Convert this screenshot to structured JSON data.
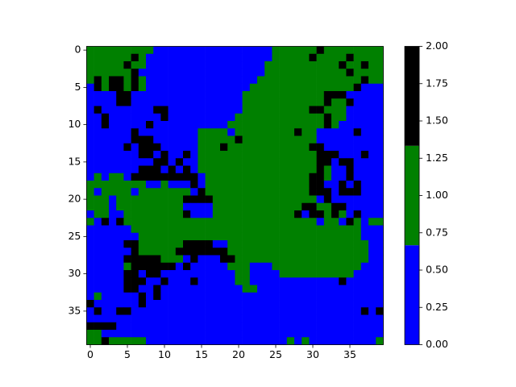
{
  "chart_data": {
    "type": "heatmap",
    "xlim": [
      -0.5,
      39.5
    ],
    "ylim": [
      39.5,
      -0.5
    ],
    "xticks": [
      0,
      5,
      10,
      15,
      20,
      25,
      30,
      35
    ],
    "yticks": [
      0,
      5,
      10,
      15,
      20,
      25,
      30,
      35
    ],
    "colorbar": {
      "lim": [
        0,
        2
      ],
      "colors": [
        "#0000ff",
        "#008000",
        "#000000"
      ],
      "ticks": [
        {
          "value": 0,
          "label": "0.00"
        },
        {
          "value": 0.25,
          "label": "0.25"
        },
        {
          "value": 0.5,
          "label": "0.50"
        },
        {
          "value": 0.75,
          "label": "0.75"
        },
        {
          "value": 1,
          "label": "1.00"
        },
        {
          "value": 1.25,
          "label": "1.25"
        },
        {
          "value": 1.5,
          "label": "1.50"
        },
        {
          "value": 1.75,
          "label": "1.75"
        },
        {
          "value": 2,
          "label": "2.00"
        }
      ]
    },
    "values": [
      [
        1,
        1,
        1,
        1,
        1,
        1,
        1,
        1,
        1,
        0,
        0,
        0,
        0,
        0,
        0,
        0,
        0,
        0,
        0,
        0,
        0,
        0,
        0,
        0,
        0,
        1,
        1,
        1,
        1,
        1,
        1,
        2,
        1,
        1,
        1,
        1,
        1,
        1,
        1,
        1
      ],
      [
        1,
        1,
        1,
        1,
        1,
        1,
        2,
        1,
        0,
        0,
        0,
        0,
        0,
        0,
        0,
        0,
        0,
        0,
        0,
        0,
        0,
        0,
        0,
        0,
        0,
        1,
        1,
        1,
        1,
        1,
        2,
        1,
        1,
        1,
        1,
        2,
        1,
        1,
        1,
        1
      ],
      [
        1,
        1,
        1,
        1,
        1,
        2,
        1,
        1,
        0,
        0,
        0,
        0,
        0,
        0,
        0,
        0,
        0,
        0,
        0,
        0,
        0,
        0,
        0,
        0,
        1,
        1,
        1,
        1,
        1,
        1,
        1,
        1,
        1,
        1,
        2,
        1,
        1,
        2,
        1,
        1
      ],
      [
        1,
        1,
        1,
        1,
        1,
        1,
        2,
        0,
        0,
        0,
        0,
        0,
        0,
        0,
        0,
        0,
        0,
        0,
        0,
        0,
        0,
        0,
        0,
        0,
        1,
        1,
        1,
        1,
        1,
        1,
        1,
        1,
        1,
        1,
        1,
        2,
        1,
        1,
        1,
        1
      ],
      [
        1,
        2,
        1,
        2,
        2,
        1,
        2,
        1,
        0,
        0,
        0,
        0,
        0,
        0,
        0,
        0,
        0,
        0,
        0,
        0,
        0,
        0,
        0,
        1,
        1,
        1,
        1,
        1,
        1,
        1,
        1,
        1,
        1,
        1,
        1,
        1,
        1,
        2,
        1,
        1
      ],
      [
        0,
        2,
        1,
        2,
        2,
        1,
        2,
        1,
        0,
        0,
        0,
        0,
        0,
        0,
        0,
        0,
        0,
        0,
        0,
        0,
        0,
        0,
        1,
        1,
        1,
        1,
        1,
        1,
        1,
        1,
        1,
        1,
        1,
        1,
        1,
        1,
        2,
        0,
        0,
        0
      ],
      [
        0,
        0,
        0,
        0,
        2,
        2,
        0,
        0,
        0,
        0,
        0,
        0,
        0,
        0,
        0,
        0,
        0,
        0,
        0,
        0,
        0,
        1,
        1,
        1,
        1,
        1,
        1,
        1,
        1,
        1,
        1,
        1,
        2,
        2,
        2,
        0,
        0,
        0,
        0,
        0
      ],
      [
        0,
        0,
        0,
        0,
        2,
        2,
        0,
        0,
        0,
        0,
        0,
        0,
        0,
        0,
        0,
        0,
        0,
        0,
        0,
        0,
        0,
        1,
        1,
        1,
        1,
        1,
        1,
        1,
        1,
        1,
        1,
        1,
        2,
        1,
        1,
        2,
        0,
        0,
        0,
        0
      ],
      [
        0,
        2,
        0,
        0,
        0,
        0,
        0,
        0,
        0,
        2,
        2,
        0,
        0,
        0,
        0,
        0,
        0,
        0,
        0,
        0,
        0,
        1,
        1,
        1,
        1,
        1,
        1,
        1,
        1,
        1,
        2,
        2,
        1,
        1,
        1,
        0,
        0,
        0,
        0,
        0
      ],
      [
        0,
        0,
        2,
        0,
        0,
        0,
        0,
        0,
        0,
        0,
        2,
        0,
        0,
        0,
        0,
        0,
        0,
        0,
        0,
        0,
        1,
        1,
        1,
        1,
        1,
        1,
        1,
        1,
        1,
        1,
        1,
        1,
        2,
        1,
        1,
        0,
        0,
        0,
        0,
        0
      ],
      [
        0,
        0,
        2,
        0,
        0,
        0,
        0,
        0,
        2,
        0,
        0,
        0,
        0,
        0,
        0,
        0,
        0,
        0,
        0,
        1,
        1,
        1,
        1,
        1,
        1,
        1,
        1,
        1,
        1,
        1,
        1,
        1,
        2,
        1,
        0,
        0,
        0,
        0,
        0,
        0
      ],
      [
        0,
        0,
        0,
        0,
        0,
        0,
        2,
        0,
        0,
        0,
        0,
        0,
        0,
        0,
        0,
        1,
        1,
        1,
        1,
        0,
        1,
        1,
        1,
        1,
        1,
        1,
        1,
        1,
        2,
        1,
        1,
        0,
        0,
        0,
        0,
        0,
        2,
        0,
        0,
        0
      ],
      [
        0,
        0,
        0,
        0,
        0,
        0,
        2,
        2,
        2,
        0,
        0,
        0,
        0,
        0,
        0,
        1,
        1,
        1,
        1,
        1,
        2,
        1,
        1,
        1,
        1,
        1,
        1,
        1,
        1,
        1,
        1,
        0,
        0,
        0,
        0,
        0,
        0,
        0,
        0,
        0
      ],
      [
        0,
        0,
        0,
        0,
        0,
        2,
        0,
        2,
        2,
        2,
        0,
        0,
        0,
        0,
        0,
        1,
        1,
        1,
        2,
        1,
        1,
        1,
        1,
        1,
        1,
        1,
        1,
        1,
        1,
        1,
        2,
        2,
        0,
        0,
        0,
        0,
        0,
        0,
        0,
        0
      ],
      [
        0,
        0,
        0,
        0,
        0,
        0,
        0,
        2,
        2,
        0,
        2,
        0,
        0,
        2,
        0,
        1,
        1,
        1,
        1,
        1,
        1,
        1,
        1,
        1,
        1,
        1,
        1,
        1,
        1,
        1,
        1,
        2,
        2,
        2,
        0,
        0,
        0,
        2,
        0,
        0
      ],
      [
        0,
        0,
        0,
        0,
        0,
        0,
        0,
        0,
        0,
        2,
        2,
        0,
        2,
        0,
        0,
        1,
        1,
        1,
        1,
        1,
        1,
        1,
        1,
        1,
        1,
        1,
        1,
        1,
        1,
        1,
        1,
        2,
        2,
        0,
        2,
        2,
        0,
        0,
        0,
        0
      ],
      [
        0,
        0,
        0,
        0,
        0,
        0,
        0,
        2,
        2,
        2,
        0,
        2,
        0,
        2,
        0,
        1,
        1,
        1,
        1,
        1,
        1,
        1,
        1,
        1,
        1,
        1,
        1,
        1,
        1,
        1,
        1,
        2,
        1,
        0,
        0,
        2,
        0,
        0,
        0,
        0
      ],
      [
        0,
        1,
        0,
        1,
        1,
        0,
        2,
        2,
        2,
        2,
        2,
        2,
        2,
        2,
        2,
        0,
        1,
        1,
        1,
        1,
        1,
        1,
        1,
        1,
        1,
        1,
        1,
        1,
        1,
        1,
        2,
        2,
        1,
        0,
        0,
        2,
        0,
        0,
        0,
        0
      ],
      [
        1,
        1,
        1,
        1,
        1,
        1,
        1,
        1,
        0,
        0,
        1,
        0,
        0,
        0,
        2,
        0,
        1,
        1,
        1,
        1,
        1,
        1,
        1,
        1,
        1,
        1,
        1,
        1,
        1,
        1,
        2,
        2,
        0,
        0,
        2,
        0,
        2,
        0,
        0,
        0
      ],
      [
        1,
        0,
        1,
        1,
        1,
        1,
        0,
        1,
        1,
        1,
        1,
        1,
        1,
        1,
        0,
        2,
        1,
        1,
        1,
        1,
        1,
        1,
        1,
        1,
        1,
        1,
        1,
        1,
        1,
        1,
        2,
        2,
        2,
        0,
        2,
        2,
        2,
        0,
        0,
        0
      ],
      [
        1,
        1,
        1,
        0,
        1,
        1,
        1,
        1,
        1,
        1,
        1,
        1,
        1,
        2,
        2,
        2,
        2,
        1,
        1,
        1,
        1,
        1,
        1,
        1,
        1,
        1,
        1,
        1,
        1,
        1,
        1,
        0,
        2,
        0,
        0,
        0,
        0,
        0,
        0,
        0
      ],
      [
        1,
        1,
        1,
        0,
        1,
        1,
        1,
        1,
        1,
        1,
        1,
        1,
        1,
        0,
        0,
        0,
        0,
        1,
        1,
        1,
        1,
        1,
        1,
        1,
        1,
        1,
        1,
        1,
        1,
        2,
        2,
        1,
        1,
        2,
        2,
        0,
        0,
        0,
        0,
        0
      ],
      [
        0,
        1,
        1,
        0,
        0,
        1,
        1,
        1,
        1,
        1,
        1,
        1,
        1,
        2,
        0,
        0,
        0,
        1,
        1,
        1,
        1,
        1,
        1,
        1,
        1,
        1,
        1,
        1,
        2,
        0,
        2,
        2,
        1,
        2,
        1,
        0,
        2,
        0,
        0,
        0
      ],
      [
        1,
        0,
        2,
        0,
        2,
        1,
        1,
        1,
        1,
        1,
        1,
        1,
        1,
        1,
        1,
        1,
        1,
        1,
        1,
        1,
        1,
        1,
        1,
        1,
        1,
        1,
        1,
        1,
        1,
        1,
        1,
        0,
        1,
        1,
        0,
        2,
        1,
        0,
        1,
        1
      ],
      [
        0,
        0,
        0,
        0,
        0,
        0,
        1,
        1,
        1,
        1,
        1,
        1,
        1,
        1,
        1,
        1,
        1,
        1,
        1,
        1,
        1,
        1,
        1,
        1,
        1,
        1,
        1,
        1,
        1,
        1,
        1,
        1,
        1,
        1,
        1,
        1,
        1,
        0,
        0,
        0
      ],
      [
        0,
        0,
        0,
        0,
        0,
        0,
        0,
        1,
        1,
        1,
        1,
        1,
        1,
        1,
        1,
        1,
        1,
        1,
        1,
        1,
        1,
        1,
        1,
        1,
        1,
        1,
        1,
        1,
        1,
        1,
        1,
        1,
        1,
        1,
        1,
        1,
        1,
        0,
        0,
        0
      ],
      [
        0,
        0,
        0,
        0,
        0,
        2,
        2,
        1,
        1,
        1,
        1,
        1,
        1,
        2,
        2,
        2,
        2,
        0,
        0,
        1,
        1,
        1,
        1,
        1,
        1,
        1,
        1,
        1,
        1,
        1,
        1,
        1,
        1,
        1,
        1,
        1,
        1,
        1,
        0,
        0
      ],
      [
        0,
        0,
        0,
        0,
        0,
        0,
        2,
        1,
        1,
        1,
        1,
        1,
        2,
        2,
        2,
        2,
        2,
        2,
        2,
        1,
        1,
        1,
        1,
        1,
        1,
        1,
        1,
        1,
        1,
        1,
        1,
        1,
        1,
        1,
        1,
        1,
        1,
        1,
        0,
        0
      ],
      [
        0,
        0,
        0,
        0,
        0,
        2,
        2,
        2,
        2,
        2,
        1,
        1,
        1,
        0,
        2,
        0,
        0,
        0,
        2,
        2,
        1,
        1,
        1,
        1,
        1,
        1,
        1,
        1,
        1,
        1,
        1,
        1,
        1,
        1,
        1,
        1,
        1,
        1,
        0,
        0
      ],
      [
        0,
        0,
        0,
        0,
        0,
        1,
        2,
        2,
        2,
        2,
        2,
        2,
        0,
        2,
        0,
        0,
        0,
        0,
        0,
        1,
        1,
        1,
        0,
        0,
        0,
        1,
        1,
        1,
        1,
        1,
        1,
        1,
        1,
        1,
        1,
        1,
        1,
        0,
        0,
        0
      ],
      [
        0,
        0,
        0,
        0,
        0,
        2,
        2,
        0,
        2,
        2,
        0,
        0,
        0,
        0,
        0,
        0,
        0,
        0,
        0,
        0,
        1,
        1,
        0,
        0,
        0,
        0,
        1,
        1,
        1,
        1,
        1,
        1,
        1,
        1,
        1,
        1,
        0,
        0,
        0,
        0
      ],
      [
        0,
        0,
        0,
        0,
        0,
        2,
        2,
        2,
        0,
        0,
        2,
        0,
        0,
        0,
        2,
        0,
        0,
        0,
        0,
        0,
        1,
        1,
        0,
        0,
        0,
        0,
        0,
        0,
        0,
        0,
        0,
        0,
        0,
        0,
        2,
        0,
        0,
        0,
        0,
        0
      ],
      [
        0,
        0,
        0,
        0,
        0,
        2,
        2,
        0,
        0,
        2,
        0,
        0,
        0,
        0,
        0,
        0,
        0,
        0,
        0,
        0,
        0,
        1,
        1,
        0,
        0,
        0,
        0,
        0,
        0,
        0,
        0,
        0,
        0,
        0,
        0,
        0,
        0,
        0,
        0,
        0
      ],
      [
        0,
        1,
        0,
        0,
        0,
        0,
        0,
        2,
        0,
        2,
        0,
        0,
        0,
        0,
        0,
        0,
        0,
        0,
        0,
        0,
        0,
        0,
        0,
        0,
        0,
        0,
        0,
        0,
        0,
        0,
        0,
        0,
        0,
        0,
        0,
        0,
        0,
        0,
        0,
        0
      ],
      [
        2,
        0,
        0,
        0,
        0,
        0,
        0,
        2,
        0,
        0,
        0,
        0,
        0,
        0,
        0,
        0,
        0,
        0,
        0,
        0,
        0,
        0,
        0,
        0,
        0,
        0,
        0,
        0,
        0,
        0,
        0,
        0,
        0,
        0,
        0,
        0,
        0,
        0,
        0,
        0
      ],
      [
        0,
        2,
        0,
        0,
        2,
        2,
        0,
        0,
        0,
        0,
        0,
        0,
        0,
        0,
        0,
        0,
        0,
        0,
        0,
        0,
        0,
        0,
        0,
        0,
        0,
        0,
        0,
        0,
        0,
        0,
        0,
        0,
        0,
        0,
        0,
        0,
        0,
        2,
        0,
        2
      ],
      [
        0,
        0,
        0,
        0,
        0,
        0,
        0,
        0,
        0,
        0,
        0,
        0,
        0,
        0,
        0,
        0,
        0,
        0,
        0,
        0,
        0,
        0,
        0,
        0,
        0,
        0,
        0,
        0,
        0,
        0,
        0,
        0,
        0,
        0,
        0,
        0,
        0,
        0,
        0,
        0
      ],
      [
        2,
        2,
        2,
        2,
        0,
        0,
        0,
        0,
        0,
        0,
        0,
        0,
        0,
        0,
        0,
        0,
        0,
        0,
        0,
        0,
        0,
        0,
        0,
        0,
        0,
        0,
        0,
        0,
        0,
        0,
        0,
        0,
        0,
        0,
        0,
        0,
        0,
        0,
        0,
        0
      ],
      [
        1,
        1,
        0,
        0,
        0,
        0,
        0,
        0,
        0,
        0,
        0,
        0,
        0,
        0,
        0,
        0,
        0,
        0,
        0,
        0,
        0,
        0,
        0,
        0,
        0,
        0,
        0,
        0,
        0,
        0,
        0,
        0,
        0,
        0,
        0,
        0,
        0,
        0,
        0,
        0
      ],
      [
        1,
        1,
        2,
        1,
        1,
        1,
        1,
        1,
        0,
        0,
        0,
        0,
        0,
        0,
        0,
        0,
        0,
        0,
        0,
        0,
        0,
        0,
        0,
        0,
        0,
        0,
        0,
        1,
        0,
        1,
        0,
        0,
        0,
        0,
        0,
        0,
        0,
        0,
        0,
        1
      ]
    ]
  }
}
